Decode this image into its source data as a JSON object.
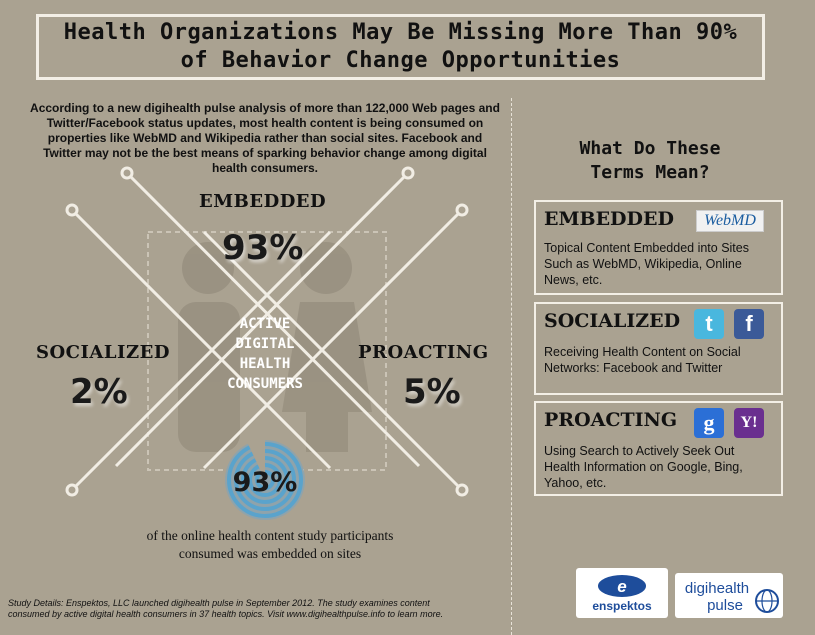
{
  "title": {
    "line1": "Health Organizations May Be Missing More Than 90%",
    "line2": "of Behavior Change Opportunities"
  },
  "intro": "According to a new digihealth pulse analysis of more than 122,000 Web pages and Twitter/Facebook status updates, most health content is being consumed on properties like WebMD and Wikipedia rather than social sites. Facebook and Twitter may not be the best means of sparking behavior change among digital health consumers.",
  "stats": {
    "embedded": {
      "label": "EMBEDDED",
      "value": "93%"
    },
    "socialized": {
      "label": "SOCIALIZED",
      "value": "2%"
    },
    "proacting": {
      "label": "PROACTING",
      "value": "5%"
    }
  },
  "center_label": [
    "ACTIVE",
    "DIGITAL",
    "HEALTH",
    "CONSUMERS"
  ],
  "ring": {
    "value": "93%",
    "fraction": 0.93
  },
  "caption": "of the online health content study participants consumed was embedded on sites",
  "footnote": "Study Details: Enspektos, LLC launched digihealth pulse in September 2012. The study examines content consumed by active digital health consumers in 37 health topics. Visit www.digihealthpulse.info to learn more.",
  "side": {
    "heading_line1": "What Do These",
    "heading_line2": "Terms Mean?",
    "terms": [
      {
        "title": "EMBEDDED",
        "desc": "Topical Content Embedded into Sites Such as WebMD, Wikipedia, Online News, etc."
      },
      {
        "title": "SOCIALIZED",
        "desc": "Receiving Health Content on Social Networks: Facebook and Twitter"
      },
      {
        "title": "PROACTING",
        "desc": "Using Search to Actively Seek Out Health Information on Google, Bing, Yahoo, etc."
      }
    ]
  },
  "logos": {
    "webmd": "WebMD",
    "twitter_glyph": "t",
    "facebook_glyph": "f",
    "google_glyph": "g",
    "yahoo_glyph": "Y!",
    "enspektos": "enspektos",
    "enspektos_mark": "e",
    "digihealth_line1": "digihealth",
    "digihealth_line2": "pulse"
  },
  "colors": {
    "background": "#aaa291",
    "frame": "#f3efe6",
    "ring": "#5aa3cc",
    "twitter": "#49b7de",
    "facebook": "#3b5a98",
    "google": "#2b6fd6",
    "yahoo": "#6a2f8f",
    "enspektos_blue": "#1e4d9b"
  }
}
